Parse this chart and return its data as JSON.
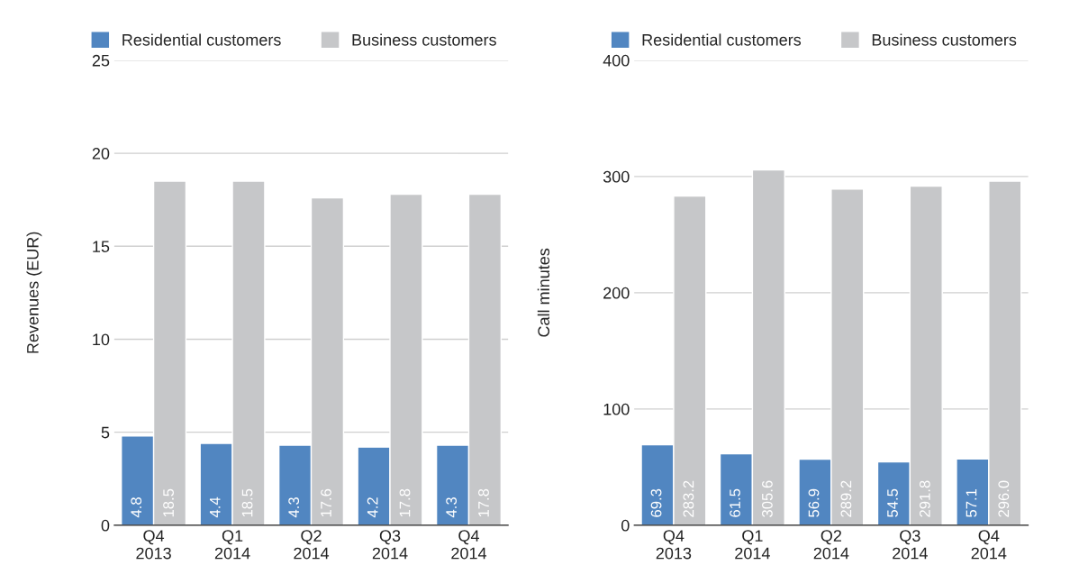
{
  "chart_data": [
    {
      "type": "bar",
      "ylabel": "Revenues (EUR)",
      "categories": [
        "Q4\n2013",
        "Q1\n2014",
        "Q2\n2014",
        "Q3\n2014",
        "Q4\n2014"
      ],
      "series": [
        {
          "name": "Residential customers",
          "color": "#5186c1",
          "values": [
            4.8,
            4.4,
            4.3,
            4.2,
            4.3
          ],
          "value_labels": [
            "4.8",
            "4.4",
            "4.3",
            "4.2",
            "4.3"
          ]
        },
        {
          "name": "Business customers",
          "color": "#c6c7c9",
          "values": [
            18.5,
            18.5,
            17.6,
            17.8,
            17.8
          ],
          "value_labels": [
            "18.5",
            "18.5",
            "17.6",
            "17.8",
            "17.8"
          ]
        }
      ],
      "ylim": [
        0,
        25
      ],
      "yticks": [
        0,
        5,
        10,
        15,
        20,
        25
      ],
      "grid": "y",
      "legend": "top"
    },
    {
      "type": "bar",
      "ylabel": "Call minutes",
      "categories": [
        "Q4\n2013",
        "Q1\n2014",
        "Q2\n2014",
        "Q3\n2014",
        "Q4\n2014"
      ],
      "series": [
        {
          "name": "Residential customers",
          "color": "#5186c1",
          "values": [
            69.3,
            61.5,
            56.9,
            54.5,
            57.1
          ],
          "value_labels": [
            "69.3",
            "61.5",
            "56.9",
            "54.5",
            "57.1"
          ]
        },
        {
          "name": "Business customers",
          "color": "#c6c7c9",
          "values": [
            283.2,
            305.6,
            289.2,
            291.8,
            296.0
          ],
          "value_labels": [
            "283.2",
            "305.6",
            "289.2",
            "291.8",
            "296.0"
          ]
        }
      ],
      "ylim": [
        0,
        400
      ],
      "yticks": [
        0,
        100,
        200,
        300,
        400
      ],
      "grid": "y",
      "legend": "top"
    }
  ]
}
